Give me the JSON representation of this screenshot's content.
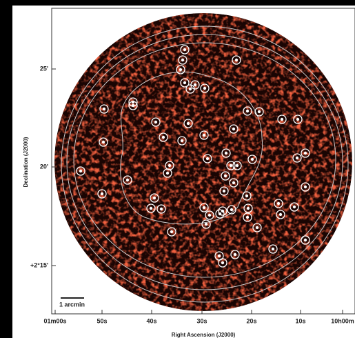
{
  "figure": {
    "y_axis": {
      "label": "Declination (J2000)",
      "ticks": [
        "25'",
        "20'",
        "+2°15'"
      ]
    },
    "x_axis": {
      "label": "Right Ascension (J2000)",
      "ticks": [
        "01m00s",
        "50s",
        "40s",
        "30s",
        "20s",
        "10s",
        "10h00m"
      ]
    },
    "scale_bar": {
      "label": "1 arcmin"
    }
  }
}
